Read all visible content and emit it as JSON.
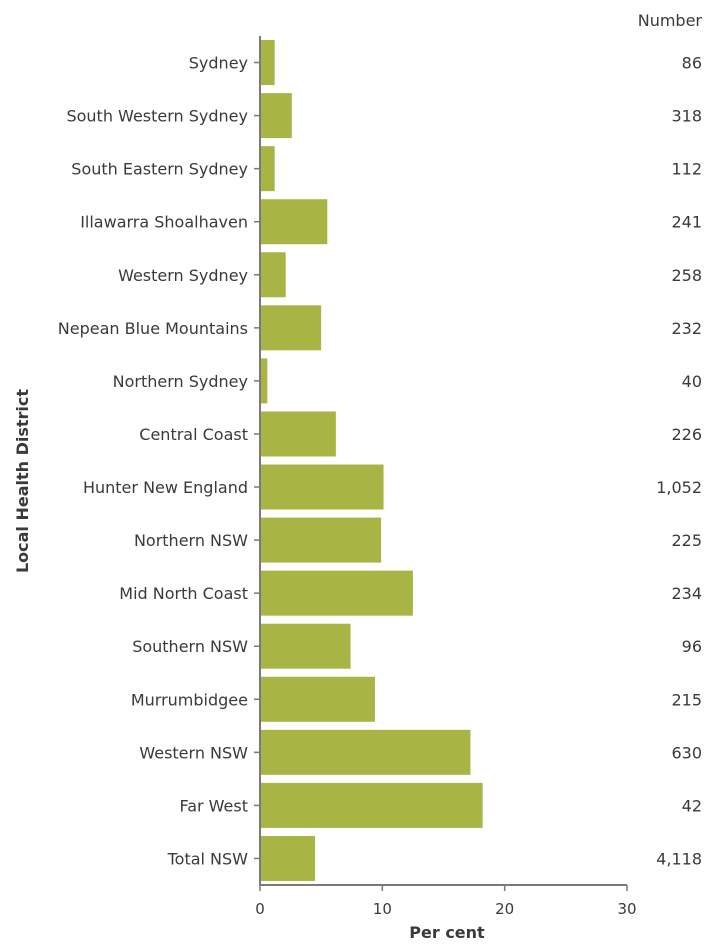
{
  "chart_data": {
    "type": "bar",
    "orientation": "horizontal",
    "categories": [
      "Sydney",
      "South Western Sydney",
      "South Eastern Sydney",
      "Illawarra Shoalhaven",
      "Western Sydney",
      "Nepean Blue Mountains",
      "Northern Sydney",
      "Central Coast",
      "Hunter New England",
      "Northern NSW",
      "Mid North Coast",
      "Southern NSW",
      "Murrumbidgee",
      "Western NSW",
      "Far West",
      "Total NSW"
    ],
    "values": [
      1.2,
      2.6,
      1.2,
      5.5,
      2.1,
      5.0,
      0.6,
      6.2,
      10.1,
      9.9,
      12.5,
      7.4,
      9.4,
      17.2,
      18.2,
      4.5
    ],
    "numbers": [
      "86",
      "318",
      "112",
      "241",
      "258",
      "232",
      "40",
      "226",
      "1,052",
      "225",
      "234",
      "96",
      "215",
      "630",
      "42",
      "4,118"
    ],
    "number_header": "Number",
    "xlabel": "Per cent",
    "ylabel": "Local Health District",
    "xlim": [
      0,
      30
    ],
    "xticks": [
      "0",
      "10",
      "20",
      "30"
    ],
    "grid": false,
    "legend": "none",
    "bar_color": "#a8b545",
    "axis_color": "#7a7a7a"
  }
}
